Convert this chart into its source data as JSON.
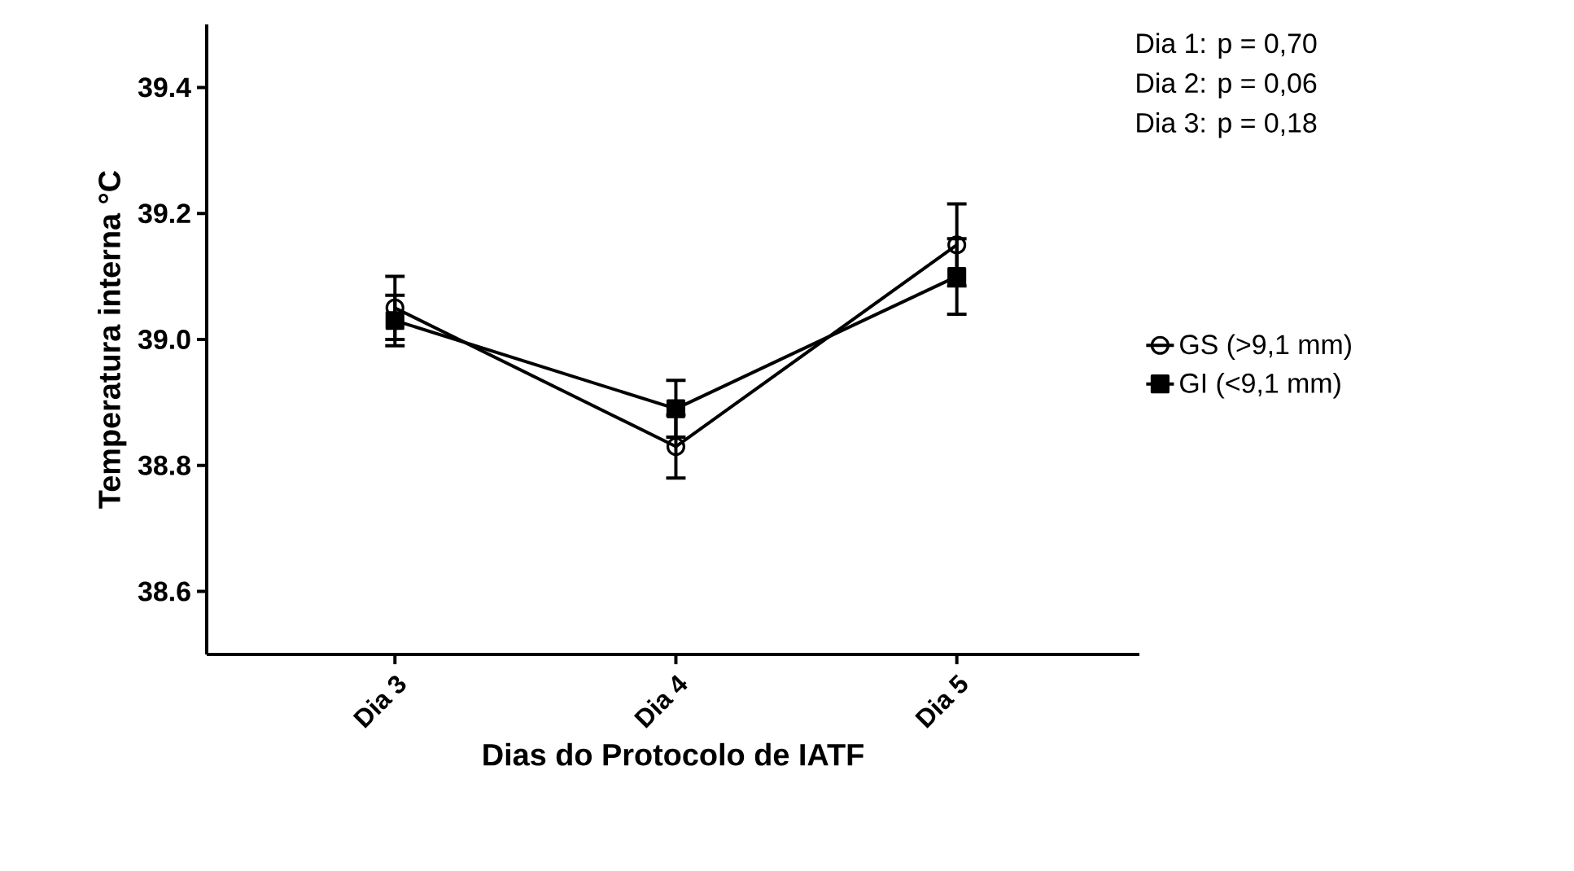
{
  "chart_data": {
    "type": "line",
    "xlabel": "Dias do Protocolo de IATF",
    "ylabel": "Temperatura interna °C",
    "categories": [
      "Dia 3",
      "Dia 4",
      "Dia 5"
    ],
    "series": [
      {
        "name": "GS (>9,1 mm)",
        "color": "#000000",
        "marker": "circle",
        "values": [
          39.05,
          38.83,
          39.15
        ],
        "errors": [
          0.05,
          0.05,
          0.065
        ]
      },
      {
        "name": "GI (<9,1 mm)",
        "color": "#000000",
        "marker": "square",
        "values": [
          39.03,
          38.89,
          39.1
        ],
        "errors": [
          0.04,
          0.045,
          0.06
        ]
      }
    ],
    "ylim": [
      38.5,
      39.5
    ],
    "yticks": [
      38.6,
      38.8,
      {
        "value": 39.0,
        "label": "39.0"
      },
      39.2,
      39.4
    ],
    "annotations": [
      "Dia 1: p = 0,70",
      "Dia 2: p = 0,06",
      "Dia 3: p = 0,18"
    ],
    "legend": "right",
    "line_style": "solid"
  }
}
